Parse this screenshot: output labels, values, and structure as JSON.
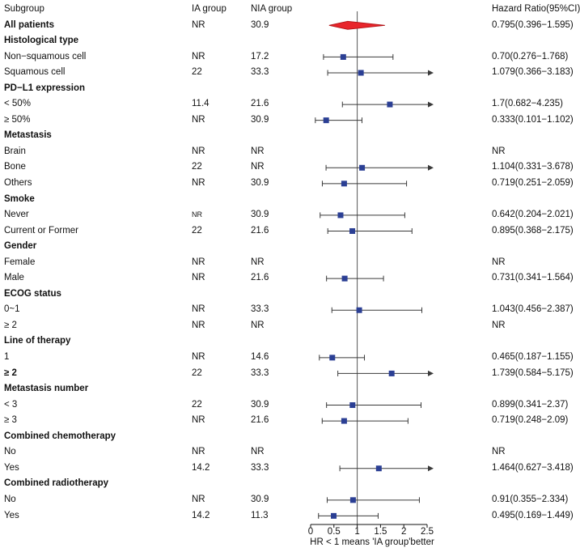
{
  "chart_data": {
    "type": "forest",
    "columns": {
      "subgroup": "Subgroup",
      "ia": "IA group",
      "nia": "NIA group",
      "hr": "Hazard Ratio(95%CI)"
    },
    "axis": {
      "min": 0,
      "max": 2.5,
      "ticks": [
        0,
        0.5,
        1,
        1.5,
        2,
        2.5
      ],
      "tick_labels": [
        "0",
        "0.5",
        "1",
        "1.5",
        "2",
        "2.5"
      ],
      "refline": 1,
      "label": "HR < 1 means 'IA group'better"
    },
    "colors": {
      "marker": "#2b3f94",
      "summary_diamond": "#e8252b",
      "summary_diamond_edge": "#b11216",
      "ci_line": "#3a3a3a",
      "axis_line": "#111111",
      "refline": "#555555",
      "text": "#111111"
    },
    "rows": [
      {
        "type": "summary",
        "label": "All patients",
        "ia": "NR",
        "nia": "30.9",
        "hr_text": "0.795(0.396−1.595)",
        "est": 0.795,
        "lo": 0.396,
        "hi": 1.595
      },
      {
        "type": "group",
        "label": "Histological type"
      },
      {
        "type": "data",
        "label": "Non−squamous cell",
        "ia": "NR",
        "nia": "17.2",
        "hr_text": "0.70(0.276−1.768)",
        "est": 0.7,
        "lo": 0.276,
        "hi": 1.768
      },
      {
        "type": "data",
        "label": "Squamous cell",
        "ia": "22",
        "nia": "33.3",
        "hr_text": "1.079(0.366−3.183)",
        "est": 1.079,
        "lo": 0.366,
        "hi": 3.183
      },
      {
        "type": "group",
        "label": "PD−L1 expression"
      },
      {
        "type": "data",
        "label": "< 50%",
        "ia": "11.4",
        "nia": "21.6",
        "hr_text": "1.7(0.682−4.235)",
        "est": 1.7,
        "lo": 0.682,
        "hi": 4.235
      },
      {
        "type": "data",
        "label": "≥ 50%",
        "ia": "NR",
        "nia": "30.9",
        "hr_text": "0.333(0.101−1.102)",
        "est": 0.333,
        "lo": 0.101,
        "hi": 1.102
      },
      {
        "type": "group",
        "label": "Metastasis"
      },
      {
        "type": "data",
        "label": "Brain",
        "ia": "NR",
        "nia": "NR",
        "hr_text": "NR"
      },
      {
        "type": "data",
        "label": "Bone",
        "ia": "22",
        "nia": "NR",
        "hr_text": "1.104(0.331−3.678)",
        "est": 1.104,
        "lo": 0.331,
        "hi": 3.678
      },
      {
        "type": "data",
        "label": "Others",
        "ia": "NR",
        "nia": "30.9",
        "hr_text": "0.719(0.251−2.059)",
        "est": 0.719,
        "lo": 0.251,
        "hi": 2.059
      },
      {
        "type": "group",
        "label": "Smoke"
      },
      {
        "type": "data",
        "label": "Never",
        "ia": "NR",
        "ia_small": true,
        "nia": "30.9",
        "hr_text": "0.642(0.204−2.021)",
        "est": 0.642,
        "lo": 0.204,
        "hi": 2.021
      },
      {
        "type": "data",
        "label": "Current or Former",
        "ia": "22",
        "nia": "21.6",
        "hr_text": "0.895(0.368−2.175)",
        "est": 0.895,
        "lo": 0.368,
        "hi": 2.175
      },
      {
        "type": "group",
        "label": "Gender"
      },
      {
        "type": "data",
        "label": "Female",
        "ia": "NR",
        "nia": "NR",
        "hr_text": "NR"
      },
      {
        "type": "data",
        "label": "Male",
        "ia": "NR",
        "nia": "21.6",
        "hr_text": "0.731(0.341−1.564)",
        "est": 0.731,
        "lo": 0.341,
        "hi": 1.564
      },
      {
        "type": "group",
        "label": "ECOG status"
      },
      {
        "type": "data",
        "label": "0~1",
        "ia": "NR",
        "nia": "33.3",
        "hr_text": "1.043(0.456−2.387)",
        "est": 1.043,
        "lo": 0.456,
        "hi": 2.387
      },
      {
        "type": "data",
        "label": "≥ 2",
        "ia": "NR",
        "nia": "NR",
        "hr_text": "NR"
      },
      {
        "type": "group",
        "label": "Line of therapy"
      },
      {
        "type": "data",
        "label": "1",
        "ia": "NR",
        "nia": "14.6",
        "hr_text": "0.465(0.187−1.155)",
        "est": 0.465,
        "lo": 0.187,
        "hi": 1.155
      },
      {
        "type": "data",
        "label": "≥ 2",
        "label_bold": true,
        "ia": "22",
        "nia": "33.3",
        "hr_text": "1.739(0.584−5.175)",
        "est": 1.739,
        "lo": 0.584,
        "hi": 5.175
      },
      {
        "type": "group",
        "label": "Metastasis number"
      },
      {
        "type": "data",
        "label": "< 3",
        "ia": "22",
        "nia": "30.9",
        "hr_text": "0.899(0.341−2.37)",
        "est": 0.899,
        "lo": 0.341,
        "hi": 2.37
      },
      {
        "type": "data",
        "label": "≥ 3",
        "ia": "NR",
        "nia": "21.6",
        "hr_text": "0.719(0.248−2.09)",
        "est": 0.719,
        "lo": 0.248,
        "hi": 2.09
      },
      {
        "type": "group",
        "label": "Combined chemotherapy"
      },
      {
        "type": "data",
        "label": "No",
        "ia": "NR",
        "nia": "NR",
        "hr_text": "NR"
      },
      {
        "type": "data",
        "label": "Yes",
        "ia": "14.2",
        "nia": "33.3",
        "hr_text": "1.464(0.627−3.418)",
        "est": 1.464,
        "lo": 0.627,
        "hi": 3.418
      },
      {
        "type": "group",
        "label": "Combined radiotherapy"
      },
      {
        "type": "data",
        "label": "No",
        "ia": "NR",
        "nia": "30.9",
        "hr_text": "0.91(0.355−2.334)",
        "est": 0.91,
        "lo": 0.355,
        "hi": 2.334
      },
      {
        "type": "data",
        "label": "Yes",
        "ia": "14.2",
        "nia": "11.3",
        "hr_text": "0.495(0.169−1.449)",
        "est": 0.495,
        "lo": 0.169,
        "hi": 1.449
      }
    ]
  }
}
